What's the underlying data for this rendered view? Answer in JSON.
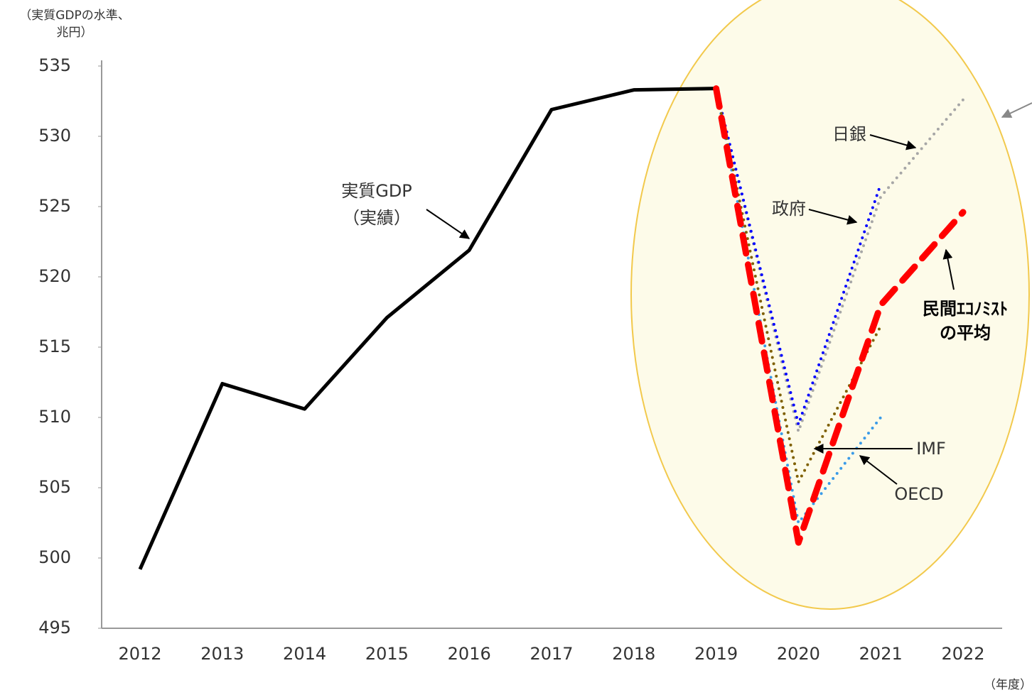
{
  "chart_data": {
    "type": "line",
    "y_label": [
      "（実質GDPの水準、",
      "兆円）"
    ],
    "x_label": "（年度）",
    "categories": [
      "2012",
      "2013",
      "2014",
      "2015",
      "2016",
      "2017",
      "2018",
      "2019",
      "2020",
      "2021",
      "2022"
    ],
    "ylim": [
      495,
      535
    ],
    "yticks": [
      495,
      500,
      505,
      510,
      515,
      520,
      525,
      530,
      535
    ],
    "series": [
      {
        "name": [
          "実質GDP",
          "（実績）"
        ],
        "color": "#000000",
        "style": "solid",
        "values": [
          499.2,
          512.4,
          510.6,
          517.1,
          521.9,
          531.9,
          533.3,
          533.4,
          null,
          null,
          null
        ]
      },
      {
        "name": [
          "日銀"
        ],
        "color": "#a6a6a6",
        "style": "dotted",
        "values": [
          null,
          null,
          null,
          null,
          null,
          null,
          null,
          533.4,
          509.0,
          525.7,
          532.6
        ]
      },
      {
        "name": [
          "政府"
        ],
        "color": "#0000ff",
        "style": "dotted",
        "values": [
          null,
          null,
          null,
          null,
          null,
          null,
          null,
          533.4,
          509.5,
          526.6,
          null
        ]
      },
      {
        "name": [
          "IMF"
        ],
        "color": "#7f6000",
        "style": "dotted",
        "values": [
          null,
          null,
          null,
          null,
          null,
          null,
          null,
          533.4,
          505.4,
          516.5,
          null
        ]
      },
      {
        "name": [
          "OECD"
        ],
        "color": "#3a9be8",
        "style": "dotted",
        "values": [
          null,
          null,
          null,
          null,
          null,
          null,
          null,
          533.4,
          502.5,
          510.0,
          null
        ]
      },
      {
        "name": [
          "民間ｴｺﾉﾐｽﾄ",
          "の平均"
        ],
        "color": "#ff0000",
        "style": "dashed",
        "values": [
          null,
          null,
          null,
          null,
          null,
          null,
          null,
          533.4,
          501.1,
          518.0,
          524.6
        ]
      }
    ]
  }
}
